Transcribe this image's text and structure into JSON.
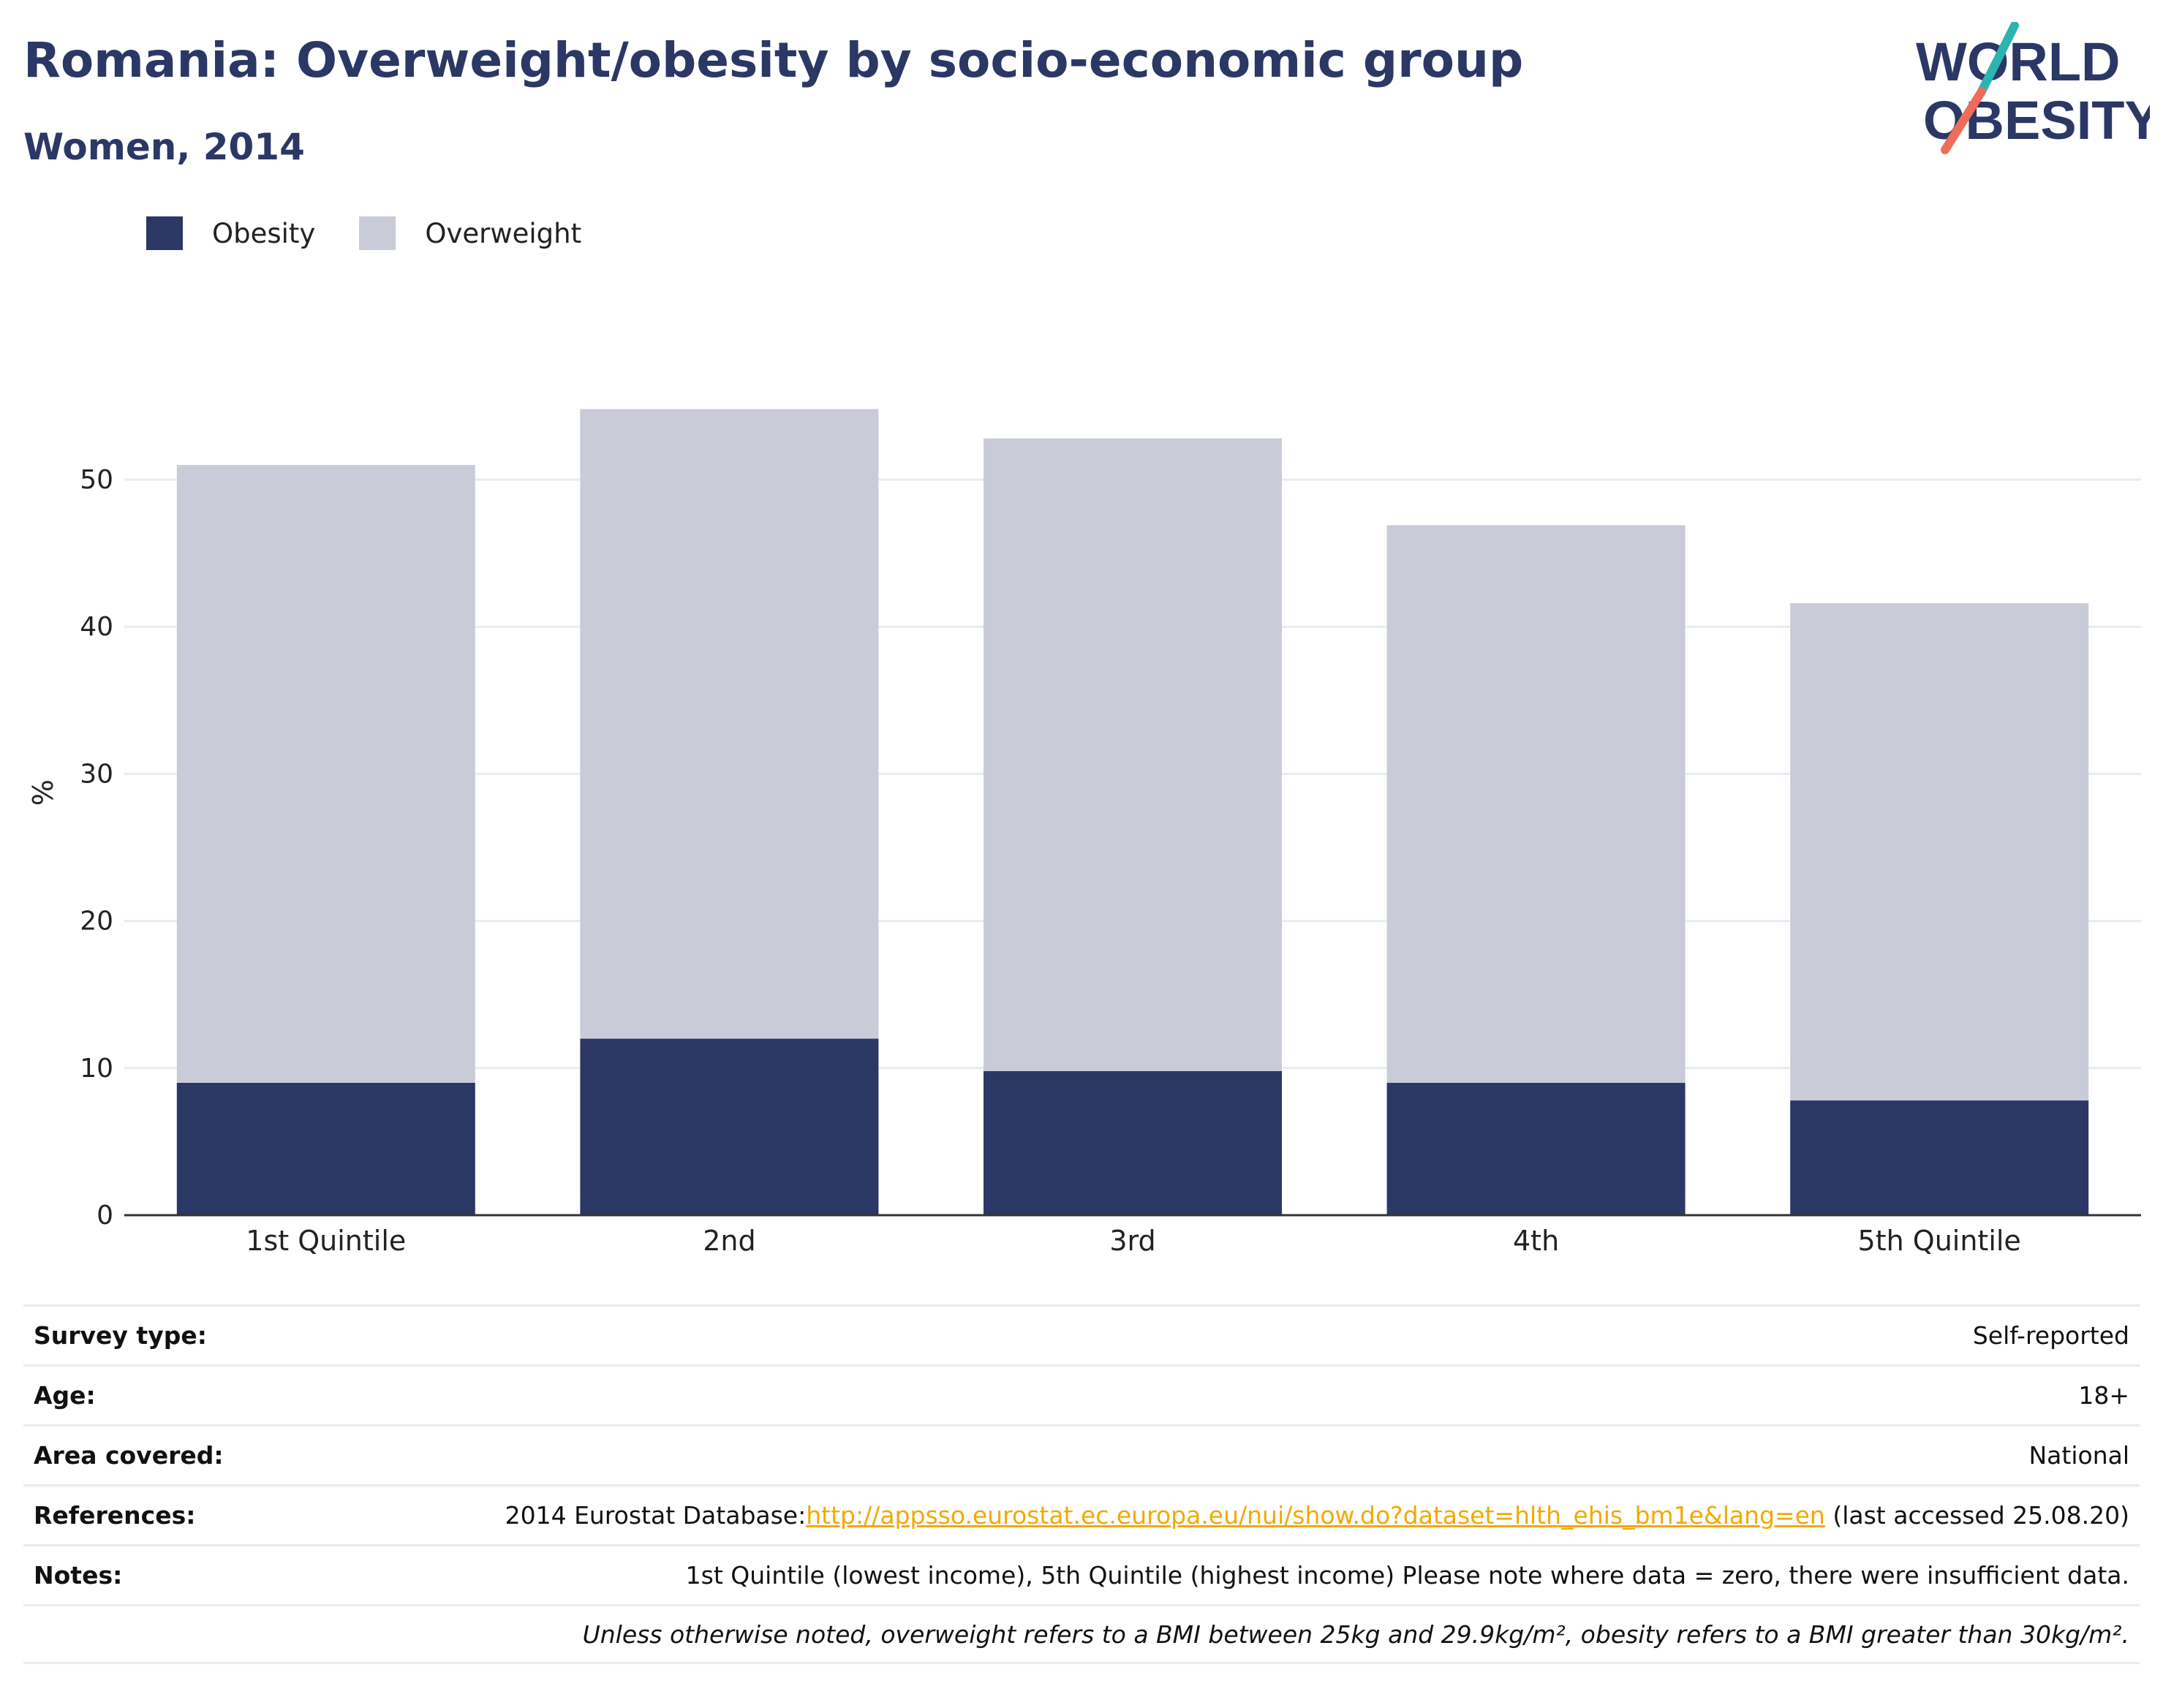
{
  "title": "Romania: Overweight/obesity by socio-economic group",
  "subtitle": "Women, 2014",
  "logo": {
    "line1": "WORLD",
    "line2": "OBESITY",
    "accent_teal": "#2bb5b0",
    "accent_coral": "#ef6c5a"
  },
  "colors": {
    "obesity": "#2b3765",
    "overweight": "#c9ccd8",
    "title": "#2b3765",
    "link": "#f2a900"
  },
  "legend": [
    {
      "label": "Obesity",
      "color": "#2b3765"
    },
    {
      "label": "Overweight",
      "color": "#c9ccd8"
    }
  ],
  "chart_data": {
    "type": "bar",
    "stacked": true,
    "categories": [
      "1st Quintile",
      "2nd",
      "3rd",
      "4th",
      "5th Quintile"
    ],
    "series": [
      {
        "name": "Obesity",
        "values": [
          9,
          12,
          9.8,
          9,
          7.8
        ]
      },
      {
        "name": "Overweight",
        "values": [
          42,
          42.8,
          43,
          37.9,
          33.8
        ]
      }
    ],
    "ylabel": "%",
    "ylim": [
      0,
      55
    ],
    "yticks": [
      0,
      10,
      20,
      30,
      40,
      50
    ],
    "grid": true,
    "legend_position": "top-left"
  },
  "info": {
    "survey_type": {
      "label": "Survey type:",
      "value": "Self-reported"
    },
    "age": {
      "label": "Age:",
      "value": "18+"
    },
    "area": {
      "label": "Area covered:",
      "value": "National"
    },
    "references": {
      "label": "References:",
      "prefix": "2014 Eurostat Database:",
      "link": "http://appsso.eurostat.ec.europa.eu/nui/show.do?dataset=hlth_ehis_bm1e&lang=en",
      "suffix": " (last accessed 25.08.20)"
    },
    "notes": {
      "label": "Notes:",
      "value": "1st Quintile (lowest income), 5th Quintile (highest income) Please note where data = zero, there were insufficient data."
    },
    "footnote": "Unless otherwise noted, overweight refers to a BMI between 25kg and 29.9kg/m², obesity refers to a BMI greater than 30kg/m²."
  }
}
